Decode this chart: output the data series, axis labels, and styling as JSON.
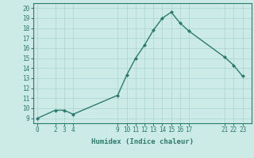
{
  "x": [
    0,
    2,
    3,
    4,
    9,
    10,
    11,
    12,
    13,
    14,
    15,
    16,
    17,
    21,
    22,
    23
  ],
  "y": [
    9,
    9.8,
    9.8,
    9.4,
    11.3,
    13.3,
    15.0,
    16.3,
    17.8,
    19.0,
    19.6,
    18.5,
    17.7,
    15.1,
    14.3,
    13.2
  ],
  "xticks": [
    0,
    2,
    3,
    4,
    9,
    10,
    11,
    12,
    13,
    14,
    15,
    16,
    17,
    21,
    22,
    23
  ],
  "yticks": [
    9,
    10,
    11,
    12,
    13,
    14,
    15,
    16,
    17,
    18,
    19,
    20
  ],
  "ylim": [
    8.5,
    20.5
  ],
  "xlim": [
    -0.5,
    24.0
  ],
  "xlabel": "Humidex (Indice chaleur)",
  "line_color": "#2d7a6e",
  "marker": "D",
  "bg_color": "#cceae6",
  "grid_color": "#aad4ce",
  "axis_color": "#2d7a6e",
  "marker_size": 2.0,
  "line_width": 1.0,
  "tick_fontsize": 5.5,
  "xlabel_fontsize": 6.5
}
